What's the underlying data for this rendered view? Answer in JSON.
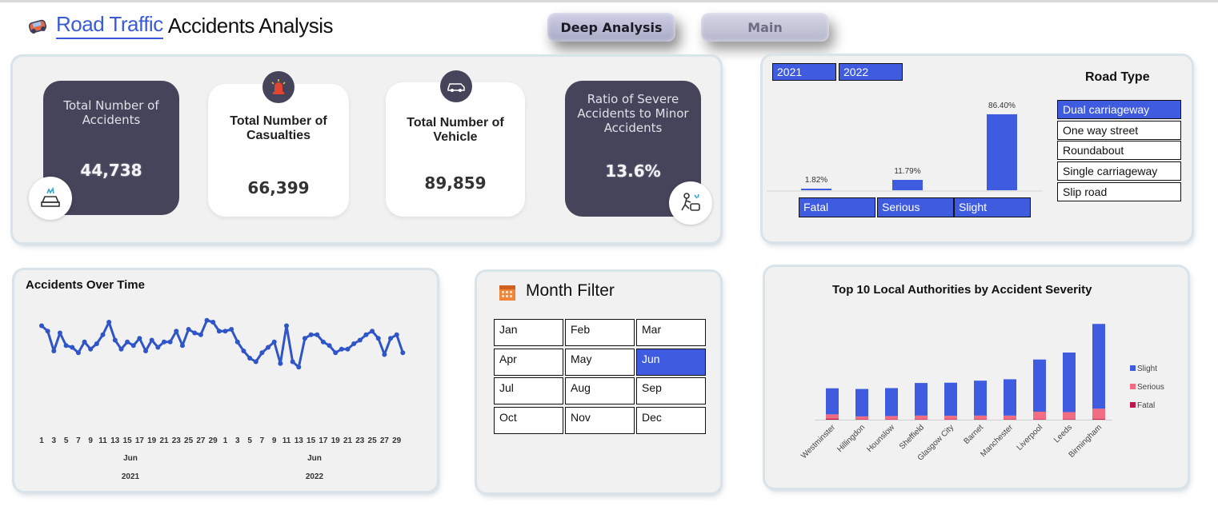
{
  "header": {
    "title_part1": "Road Traffic",
    "title_part2": "Accidents Analysis",
    "nav_deep_label": "Deep Analysis",
    "nav_main_label": "Main"
  },
  "kpis": {
    "accidents": {
      "label": "Total Number  of Accidents",
      "value": "44,738"
    },
    "casualties": {
      "label": "Total Number of Casualties",
      "value": "66,399"
    },
    "vehicles": {
      "label": "Total Number of Vehicle",
      "value": "89,859"
    },
    "ratio": {
      "label": "Ratio of Severe Accidents to Minor Accidents",
      "value": "13.6%"
    }
  },
  "year_filter": {
    "years": [
      "2021",
      "2022"
    ]
  },
  "severity_buttons": [
    "Fatal",
    "Serious",
    "Slight"
  ],
  "road_type": {
    "title": "Road Type",
    "items": [
      "Dual carriageway",
      "One way street",
      "Roundabout",
      "Single carriageway",
      "Slip road"
    ],
    "selected": "Dual carriageway"
  },
  "month_filter": {
    "title": "Month Filter",
    "months": [
      "Jan",
      "Feb",
      "Mar",
      "Apr",
      "May",
      "Jun",
      "Jul",
      "Aug",
      "Sep",
      "Oct",
      "Nov",
      "Dec"
    ],
    "selected": "Jun"
  },
  "colors": {
    "accent": "#3f5ce0",
    "dark_card": "#45445a",
    "serious": "#f26d82",
    "fatal": "#c0174a",
    "line": "#2f55c6"
  },
  "chart_data": [
    {
      "id": "severity",
      "type": "bar",
      "categories": [
        "Fatal",
        "Serious",
        "Slight"
      ],
      "values": [
        1.82,
        11.79,
        86.4
      ],
      "data_labels": [
        "1.82%",
        "11.79%",
        "86.40%"
      ],
      "ylim": [
        0,
        100
      ]
    },
    {
      "id": "over_time",
      "type": "line",
      "title": "Accidents Over Time",
      "x_ticks": [
        "1",
        "3",
        "5",
        "7",
        "9",
        "11",
        "13",
        "15",
        "17",
        "19",
        "21",
        "23",
        "25",
        "27",
        "29",
        "1",
        "3",
        "5",
        "7",
        "9",
        "11",
        "13",
        "15",
        "17",
        "19",
        "21",
        "23",
        "25",
        "27",
        "29"
      ],
      "month_labels": [
        "Jun",
        "Jun"
      ],
      "year_labels": [
        "2021",
        "2022"
      ],
      "values": [
        1650,
        1620,
        1510,
        1610,
        1540,
        1530,
        1500,
        1560,
        1520,
        1550,
        1600,
        1670,
        1570,
        1520,
        1560,
        1540,
        1580,
        1510,
        1570,
        1530,
        1560,
        1560,
        1620,
        1540,
        1630,
        1610,
        1600,
        1680,
        1670,
        1620,
        1620,
        1630,
        1560,
        1510,
        1470,
        1450,
        1500,
        1530,
        1560,
        1440,
        1650,
        1450,
        1420,
        1580,
        1600,
        1600,
        1560,
        1540,
        1500,
        1520,
        1520,
        1550,
        1570,
        1600,
        1620,
        1580,
        1490,
        1580,
        1600,
        1500
      ],
      "ylim": [
        1350,
        1750
      ]
    },
    {
      "id": "local_authorities",
      "type": "bar",
      "title": "Top 10 Local Authorities by Accident Severity",
      "categories": [
        "Westminster",
        "Hillingdon",
        "Hounslow",
        "Sheffield",
        "Glasgow City",
        "Barnet",
        "Manchester",
        "Liverpool",
        "Leeds",
        "Birmingham"
      ],
      "series": [
        {
          "name": "Slight",
          "values": [
            280,
            295,
            300,
            350,
            355,
            375,
            390,
            560,
            640,
            910
          ]
        },
        {
          "name": "Serious",
          "values": [
            45,
            30,
            35,
            40,
            38,
            40,
            40,
            80,
            75,
            110
          ]
        },
        {
          "name": "Fatal",
          "values": [
            12,
            5,
            4,
            4,
            4,
            4,
            4,
            6,
            6,
            8
          ]
        }
      ],
      "legend": "right"
    }
  ]
}
